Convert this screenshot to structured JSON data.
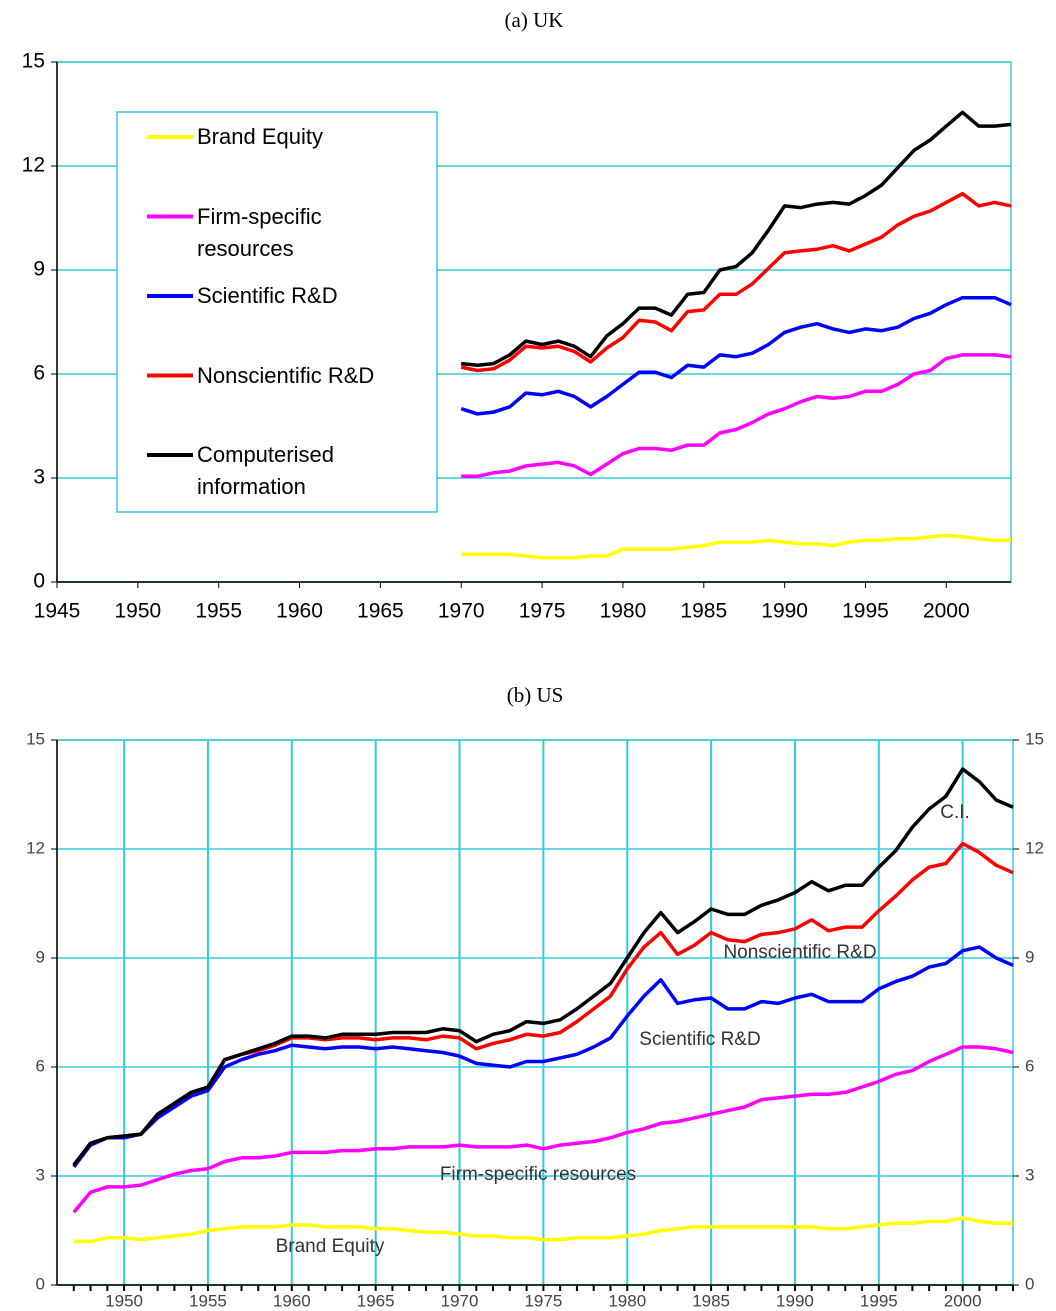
{
  "chart_data": [
    {
      "type": "line",
      "title": "(a) UK",
      "x": [
        1970,
        1971,
        1972,
        1973,
        1974,
        1975,
        1976,
        1977,
        1978,
        1979,
        1980,
        1981,
        1982,
        1983,
        1984,
        1985,
        1986,
        1987,
        1988,
        1989,
        1990,
        1991,
        1992,
        1993,
        1994,
        1995,
        1996,
        1997,
        1998,
        1999,
        2000,
        2001,
        2002,
        2003,
        2004
      ],
      "series": [
        {
          "name": "Brand Equity",
          "color": "#ffff00",
          "values": [
            0.8,
            0.8,
            0.8,
            0.8,
            0.75,
            0.7,
            0.7,
            0.7,
            0.75,
            0.75,
            0.95,
            0.95,
            0.95,
            0.95,
            1.0,
            1.05,
            1.15,
            1.15,
            1.15,
            1.2,
            1.15,
            1.1,
            1.1,
            1.05,
            1.15,
            1.2,
            1.2,
            1.25,
            1.25,
            1.3,
            1.35,
            1.3,
            1.25,
            1.2,
            1.2
          ]
        },
        {
          "name": "Firm-specific resources",
          "color": "#ff00ff",
          "values": [
            3.05,
            3.05,
            3.15,
            3.2,
            3.35,
            3.4,
            3.45,
            3.35,
            3.1,
            3.4,
            3.7,
            3.85,
            3.85,
            3.8,
            3.95,
            3.95,
            4.3,
            4.4,
            4.6,
            4.85,
            5.0,
            5.2,
            5.35,
            5.3,
            5.35,
            5.5,
            5.5,
            5.7,
            6.0,
            6.1,
            6.45,
            6.55,
            6.55,
            6.55,
            6.5
          ]
        },
        {
          "name": "Scientific R&D",
          "color": "#0000ff",
          "values": [
            5.0,
            4.85,
            4.9,
            5.05,
            5.45,
            5.4,
            5.5,
            5.35,
            5.05,
            5.35,
            5.7,
            6.05,
            6.05,
            5.9,
            6.25,
            6.2,
            6.55,
            6.5,
            6.6,
            6.85,
            7.2,
            7.35,
            7.45,
            7.3,
            7.2,
            7.3,
            7.25,
            7.35,
            7.6,
            7.75,
            8.0,
            8.2,
            8.2,
            8.2,
            8.0
          ]
        },
        {
          "name": "Nonscientific R&D",
          "color": "#ff0000",
          "values": [
            6.2,
            6.1,
            6.15,
            6.4,
            6.8,
            6.75,
            6.8,
            6.65,
            6.35,
            6.75,
            7.05,
            7.55,
            7.5,
            7.25,
            7.8,
            7.85,
            8.3,
            8.3,
            8.6,
            9.05,
            9.5,
            9.55,
            9.6,
            9.7,
            9.55,
            9.75,
            9.95,
            10.3,
            10.55,
            10.7,
            10.95,
            11.2,
            10.85,
            10.95,
            10.85
          ]
        },
        {
          "name": "Computerised information",
          "color": "#000000",
          "values": [
            6.3,
            6.25,
            6.3,
            6.55,
            6.95,
            6.85,
            6.95,
            6.8,
            6.5,
            7.1,
            7.45,
            7.9,
            7.9,
            7.7,
            8.3,
            8.35,
            9.0,
            9.1,
            9.5,
            10.15,
            10.85,
            10.8,
            10.9,
            10.95,
            10.9,
            11.15,
            11.45,
            11.95,
            12.45,
            12.75,
            13.15,
            13.55,
            13.15,
            13.15,
            13.2
          ]
        }
      ],
      "xlim": [
        1945,
        2004
      ],
      "xticks": [
        1945,
        1950,
        1955,
        1960,
        1965,
        1970,
        1975,
        1980,
        1985,
        1990,
        1995,
        2000
      ],
      "ylim": [
        0,
        15
      ],
      "yticks": [
        0,
        3,
        6,
        9,
        12,
        15
      ],
      "grid": "y",
      "legend": "upper left"
    },
    {
      "type": "line",
      "title": "(b) US",
      "x": [
        1947,
        1948,
        1949,
        1950,
        1951,
        1952,
        1953,
        1954,
        1955,
        1956,
        1957,
        1958,
        1959,
        1960,
        1961,
        1962,
        1963,
        1964,
        1965,
        1966,
        1967,
        1968,
        1969,
        1970,
        1971,
        1972,
        1973,
        1974,
        1975,
        1976,
        1977,
        1978,
        1979,
        1980,
        1981,
        1982,
        1983,
        1984,
        1985,
        1986,
        1987,
        1988,
        1989,
        1990,
        1991,
        1992,
        1993,
        1994,
        1995,
        1996,
        1997,
        1998,
        1999,
        2000,
        2001,
        2002,
        2003
      ],
      "series": [
        {
          "name": "Brand Equity",
          "color": "#ffff00",
          "values": [
            1.2,
            1.2,
            1.3,
            1.3,
            1.25,
            1.3,
            1.35,
            1.4,
            1.5,
            1.55,
            1.6,
            1.6,
            1.6,
            1.65,
            1.65,
            1.6,
            1.6,
            1.6,
            1.55,
            1.55,
            1.5,
            1.45,
            1.45,
            1.4,
            1.35,
            1.35,
            1.3,
            1.3,
            1.25,
            1.25,
            1.3,
            1.3,
            1.3,
            1.35,
            1.4,
            1.5,
            1.55,
            1.6,
            1.6,
            1.6,
            1.6,
            1.6,
            1.6,
            1.6,
            1.6,
            1.55,
            1.55,
            1.6,
            1.65,
            1.7,
            1.7,
            1.75,
            1.75,
            1.85,
            1.75,
            1.7,
            1.7
          ]
        },
        {
          "name": "Firm-specific resources",
          "color": "#ff00ff",
          "values": [
            2.0,
            2.55,
            2.7,
            2.7,
            2.75,
            2.9,
            3.05,
            3.15,
            3.2,
            3.4,
            3.5,
            3.5,
            3.55,
            3.65,
            3.65,
            3.65,
            3.7,
            3.7,
            3.75,
            3.75,
            3.8,
            3.8,
            3.8,
            3.85,
            3.8,
            3.8,
            3.8,
            3.85,
            3.75,
            3.85,
            3.9,
            3.95,
            4.05,
            4.2,
            4.3,
            4.45,
            4.5,
            4.6,
            4.7,
            4.8,
            4.9,
            5.1,
            5.15,
            5.2,
            5.25,
            5.25,
            5.3,
            5.45,
            5.6,
            5.8,
            5.9,
            6.15,
            6.35,
            6.55,
            6.55,
            6.5,
            6.4
          ]
        },
        {
          "name": "Scientific R&D",
          "color": "#0000ff",
          "values": [
            3.25,
            3.85,
            4.05,
            4.05,
            4.15,
            4.6,
            4.9,
            5.2,
            5.35,
            6.0,
            6.2,
            6.35,
            6.45,
            6.6,
            6.55,
            6.5,
            6.55,
            6.55,
            6.5,
            6.55,
            6.5,
            6.45,
            6.4,
            6.3,
            6.1,
            6.05,
            6.0,
            6.15,
            6.15,
            6.25,
            6.35,
            6.55,
            6.8,
            7.4,
            7.95,
            8.4,
            7.75,
            7.85,
            7.9,
            7.6,
            7.6,
            7.8,
            7.75,
            7.9,
            8.0,
            7.8,
            7.8,
            7.8,
            8.15,
            8.35,
            8.5,
            8.75,
            8.85,
            9.2,
            9.3,
            9.0,
            8.8
          ]
        },
        {
          "name": "Nonscientific R&D",
          "color": "#ff0000",
          "values": [
            3.3,
            3.9,
            4.05,
            4.1,
            4.15,
            4.7,
            5.0,
            5.3,
            5.45,
            6.2,
            6.35,
            6.45,
            6.6,
            6.8,
            6.8,
            6.75,
            6.8,
            6.8,
            6.75,
            6.8,
            6.8,
            6.75,
            6.85,
            6.8,
            6.5,
            6.65,
            6.75,
            6.9,
            6.85,
            6.95,
            7.25,
            7.6,
            7.95,
            8.7,
            9.3,
            9.7,
            9.1,
            9.35,
            9.7,
            9.5,
            9.45,
            9.65,
            9.7,
            9.8,
            10.05,
            9.75,
            9.85,
            9.85,
            10.3,
            10.7,
            11.15,
            11.5,
            11.6,
            12.15,
            11.9,
            11.55,
            11.35
          ]
        },
        {
          "name": "C.I.",
          "color": "#000000",
          "values": [
            3.3,
            3.9,
            4.05,
            4.1,
            4.15,
            4.7,
            5.0,
            5.3,
            5.45,
            6.2,
            6.35,
            6.5,
            6.65,
            6.85,
            6.85,
            6.8,
            6.9,
            6.9,
            6.9,
            6.95,
            6.95,
            6.95,
            7.05,
            7.0,
            6.7,
            6.9,
            7.0,
            7.25,
            7.2,
            7.3,
            7.6,
            7.95,
            8.3,
            9.0,
            9.7,
            10.25,
            9.7,
            10.0,
            10.35,
            10.2,
            10.2,
            10.45,
            10.6,
            10.8,
            11.1,
            10.85,
            11.0,
            11.0,
            11.5,
            11.95,
            12.6,
            13.1,
            13.45,
            14.2,
            13.85,
            13.35,
            13.15
          ]
        }
      ],
      "xlim": [
        1946,
        2003
      ],
      "xticks": [
        1950,
        1955,
        1960,
        1965,
        1970,
        1975,
        1980,
        1985,
        1990,
        1995,
        2000
      ],
      "ylim": [
        0,
        15
      ],
      "yticks": [
        0,
        3,
        6,
        9,
        12,
        15
      ],
      "y2lim": [
        0,
        15
      ],
      "y2ticks": [
        0,
        3,
        6,
        9,
        12,
        15
      ],
      "grid": "both",
      "legend": "labels"
    }
  ]
}
